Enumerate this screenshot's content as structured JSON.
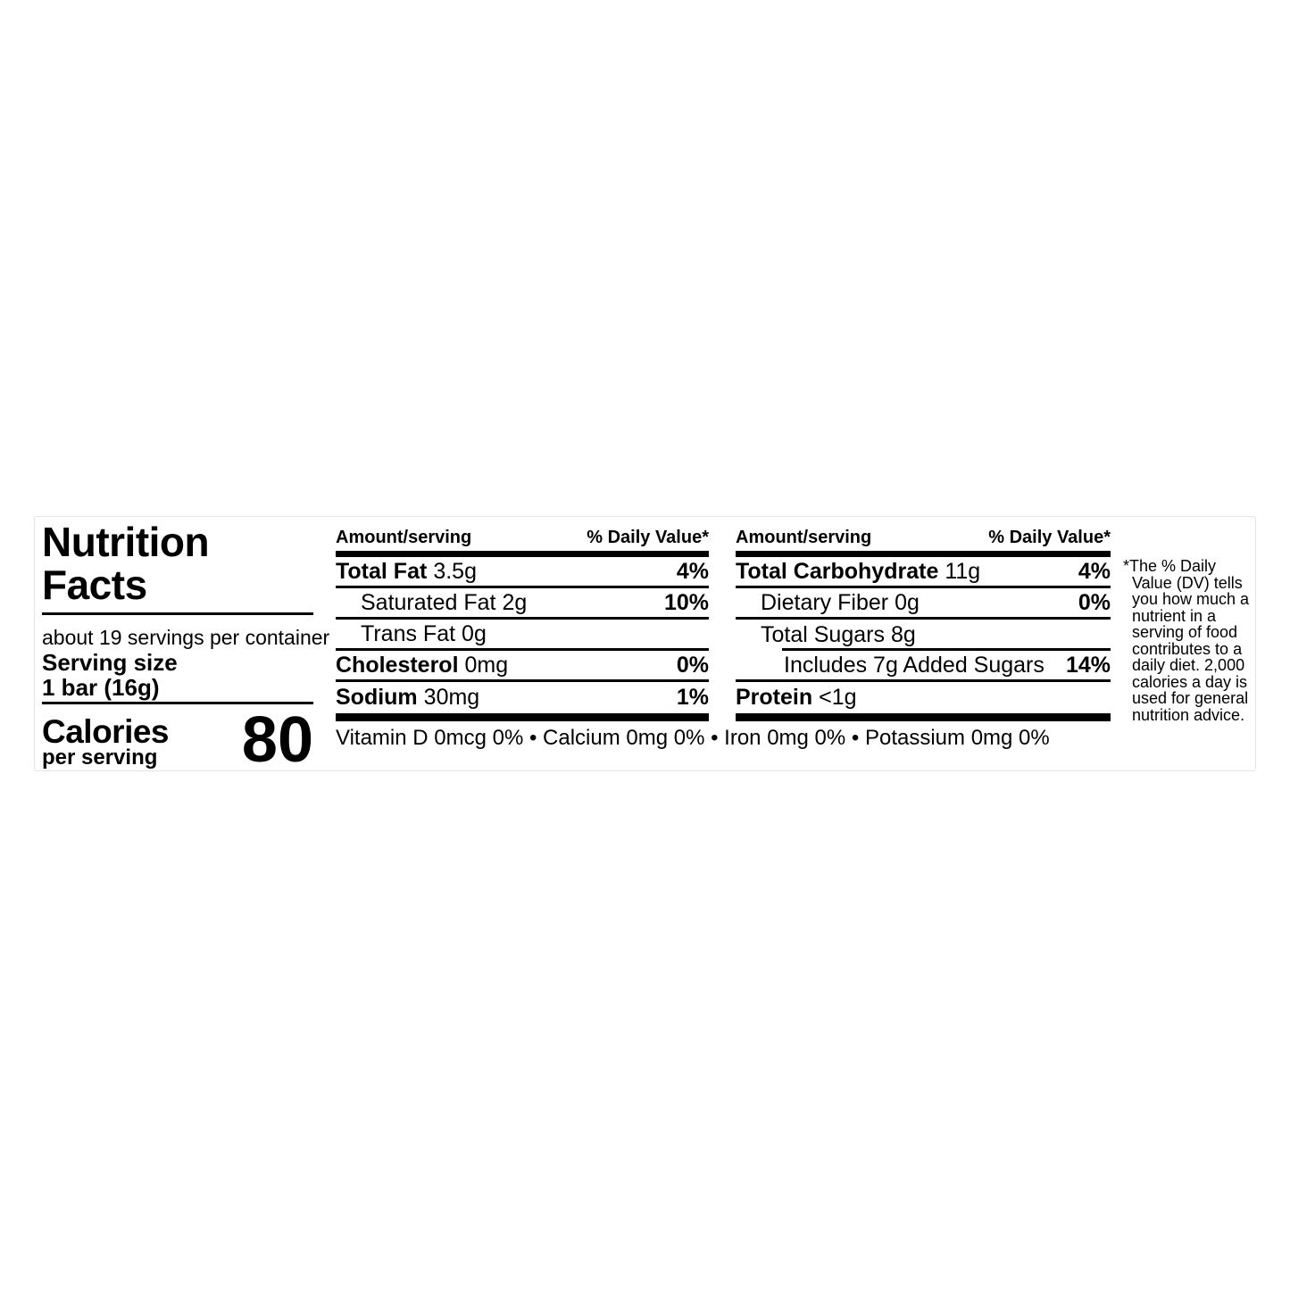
{
  "label": {
    "title": "Nutrition Facts",
    "servings_per_container": "about 19 servings per container",
    "serving_size_label": "Serving size",
    "serving_size_value": "1 bar (16g)",
    "calories_label": "Calories",
    "calories_sublabel": "per serving",
    "calories_value": "80",
    "columns": [
      {
        "amount_header": "Amount/serving",
        "dv_header": "% Daily Value*",
        "rows": [
          {
            "name": "Total Fat",
            "amount": "3.5g",
            "dv": "4%"
          },
          {
            "name": "Saturated Fat",
            "amount": "2g",
            "dv": "10%"
          },
          {
            "name": "Trans Fat",
            "amount": "0g",
            "dv": ""
          },
          {
            "name": "Cholesterol",
            "amount": "0mg",
            "dv": "0%"
          },
          {
            "name": "Sodium",
            "amount": "30mg",
            "dv": "1%"
          }
        ]
      },
      {
        "amount_header": "Amount/serving",
        "dv_header": "% Daily Value*",
        "rows": [
          {
            "name": "Total Carbohydrate",
            "amount": "11g",
            "dv": "4%"
          },
          {
            "name": "Dietary Fiber",
            "amount": "0g",
            "dv": "0%"
          },
          {
            "name": "Total Sugars",
            "amount": "8g",
            "dv": ""
          },
          {
            "name": "Includes 7g Added Sugars",
            "amount": "",
            "dv": "14%"
          },
          {
            "name": "Protein",
            "amount": "<1g",
            "dv": ""
          }
        ]
      }
    ],
    "micronutrient_line": "Vitamin D 0mcg 0% • Calcium 0mg 0% • Iron 0mg 0% • Potassium 0mg 0%",
    "footnote_lines": [
      "*The % Daily",
      "Value (DV) tells",
      "you how much a",
      "nutrient in a",
      "serving of food",
      "contributes to a",
      "daily diet. 2,000",
      "calories a day is",
      "used for general",
      "nutrition advice."
    ],
    "colors": {
      "text": "#000000",
      "border": "#e4e4e4",
      "rule": "#000000"
    }
  }
}
